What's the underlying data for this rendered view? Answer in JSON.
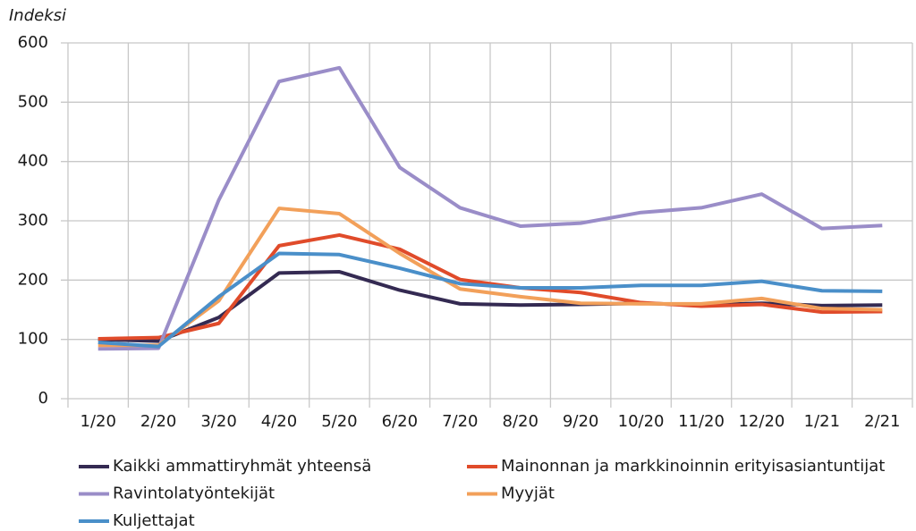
{
  "chart_data": {
    "type": "line",
    "y_axis_label": "Indeksi",
    "categories": [
      "1/20",
      "2/20",
      "3/20",
      "4/20",
      "5/20",
      "6/20",
      "7/20",
      "8/20",
      "9/20",
      "10/20",
      "11/20",
      "12/20",
      "1/21",
      "2/21"
    ],
    "series": [
      {
        "name": "Kaikki ammattiryhmät yhteensä",
        "color": "#342a52",
        "values": [
          100,
          97,
          137,
          212,
          214,
          183,
          160,
          158,
          159,
          161,
          158,
          161,
          157,
          158
        ]
      },
      {
        "name": "Mainonnan ja markkinoinnin erityisasiantuntijat",
        "color": "#e04b2a",
        "values": [
          101,
          103,
          127,
          258,
          276,
          252,
          201,
          187,
          179,
          162,
          156,
          159,
          146,
          147
        ]
      },
      {
        "name": "Ravintolatyöntekijät",
        "color": "#9a8dc8",
        "values": [
          84,
          85,
          335,
          535,
          558,
          390,
          322,
          291,
          296,
          314,
          322,
          345,
          287,
          292
        ]
      },
      {
        "name": "Myyjät",
        "color": "#f2a05a",
        "values": [
          90,
          90,
          165,
          321,
          312,
          245,
          185,
          172,
          161,
          160,
          160,
          169,
          152,
          150
        ]
      },
      {
        "name": "Kuljettajat",
        "color": "#4a8fc9",
        "values": [
          95,
          88,
          172,
          245,
          243,
          220,
          194,
          187,
          187,
          191,
          191,
          198,
          182,
          181
        ]
      }
    ],
    "ylim": [
      0,
      600
    ],
    "yticks": [
      0,
      100,
      200,
      300,
      400,
      500,
      600
    ],
    "grid": true
  }
}
